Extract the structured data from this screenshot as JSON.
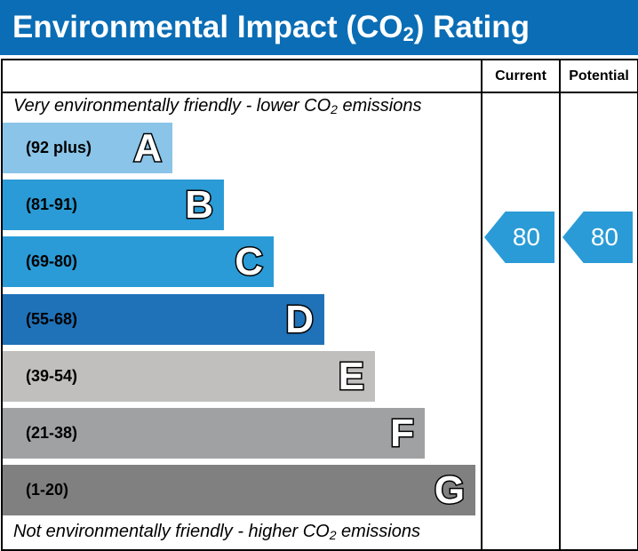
{
  "title_main": "Environmental Impact (CO",
  "title_sub": "2",
  "title_end": ") Rating",
  "columns": {
    "current": "Current",
    "potential": "Potential"
  },
  "top_note": {
    "pre": "Very environmentally friendly - lower CO",
    "sub": "2",
    "post": " emissions"
  },
  "bottom_note": {
    "pre": "Not environmentally friendly - higher CO",
    "sub": "2",
    "post": " emissions"
  },
  "chart_data": {
    "type": "bar",
    "categories": [
      "A",
      "B",
      "C",
      "D",
      "E",
      "F",
      "G"
    ],
    "bands": [
      {
        "letter": "A",
        "range": "(92 plus)",
        "color": "#8ac4e8"
      },
      {
        "letter": "B",
        "range": "(81-91)",
        "color": "#2a9bd6"
      },
      {
        "letter": "C",
        "range": "(69-80)",
        "color": "#2a9bd6"
      },
      {
        "letter": "D",
        "range": "(55-68)",
        "color": "#1f72b8"
      },
      {
        "letter": "E",
        "range": "(39-54)",
        "color": "#c0bfbd"
      },
      {
        "letter": "F",
        "range": "(21-38)",
        "color": "#a0a1a3"
      },
      {
        "letter": "G",
        "range": "(1-20)",
        "color": "#808080"
      }
    ],
    "current": {
      "value": "80",
      "band": "C",
      "color": "#2a9bd6"
    },
    "potential": {
      "value": "80",
      "band": "C",
      "color": "#2a9bd6"
    }
  }
}
